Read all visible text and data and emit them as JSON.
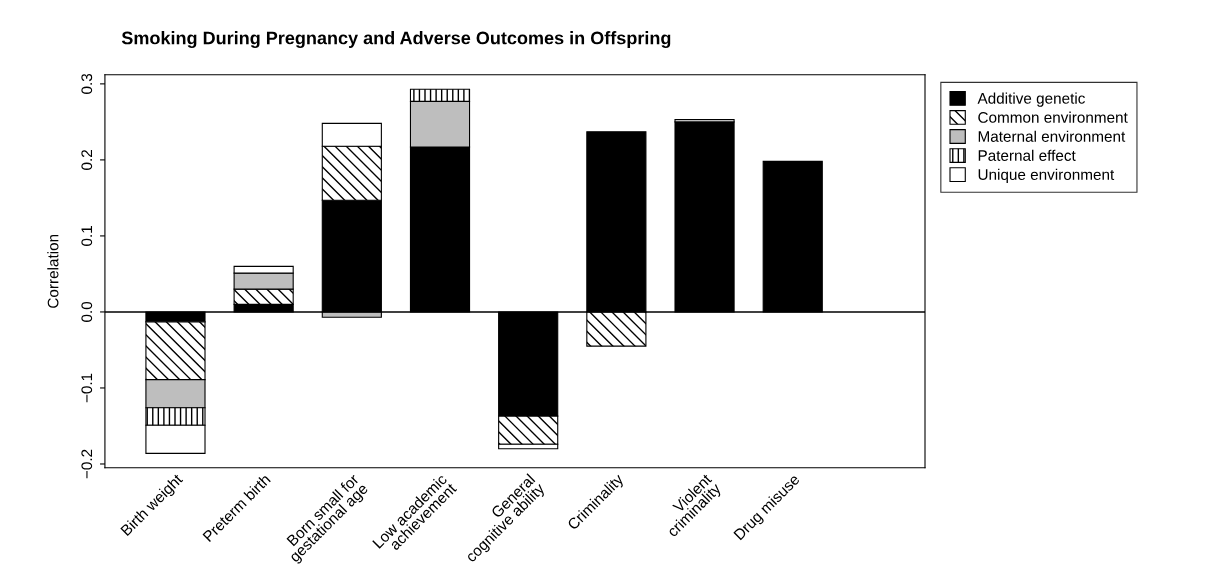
{
  "chart_data": {
    "type": "bar",
    "title": "Smoking During Pregnancy and Adverse Outcomes in Offspring",
    "ylabel": "Correlation",
    "categories": [
      "Birth weight",
      "Preterm birth",
      "Born small for\ngestational age",
      "Low academic\nachievement",
      "General\ncognitive ability",
      "Criminality",
      "Violent\ncriminality",
      "Drug misuse"
    ],
    "stacked": true,
    "series": [
      {
        "name": "Additive genetic",
        "color": "#000000",
        "values": [
          -0.013,
          0.01,
          0.147,
          0.217,
          -0.137,
          0.237,
          0.25,
          0.198
        ]
      },
      {
        "name": "Common environment",
        "color": "#ffffff",
        "values": [
          -0.076,
          0.02,
          0.071,
          null,
          -0.037,
          -0.045,
          null,
          null
        ]
      },
      {
        "name": "Maternal environment",
        "color": "#bebebe",
        "values": [
          -0.037,
          0.021,
          -0.007,
          0.06,
          null,
          null,
          null,
          null
        ]
      },
      {
        "name": "Paternal effect",
        "color": "#ffffff",
        "values": [
          -0.023,
          null,
          null,
          0.016,
          null,
          null,
          null,
          null
        ]
      },
      {
        "name": "Unique environment",
        "color": "#ffffff",
        "values": [
          -0.037,
          0.009,
          0.03,
          null,
          -0.006,
          null,
          0.003,
          null
        ]
      }
    ],
    "ylim": [
      -0.205,
      0.312
    ],
    "yticks": [
      {
        "value": -0.2,
        "label": "−0.2"
      },
      {
        "value": -0.1,
        "label": "−0.1"
      },
      {
        "value": 0,
        "label": "0.0"
      },
      {
        "value": 0.1,
        "label": "0.1"
      },
      {
        "value": 0.2,
        "label": "0.2"
      },
      {
        "value": 0.3,
        "label": "0.3"
      }
    ],
    "ref_lines": [
      {
        "axis": "y",
        "value": 0,
        "color": "#000000"
      }
    ],
    "grid": false,
    "legend": "top right"
  }
}
